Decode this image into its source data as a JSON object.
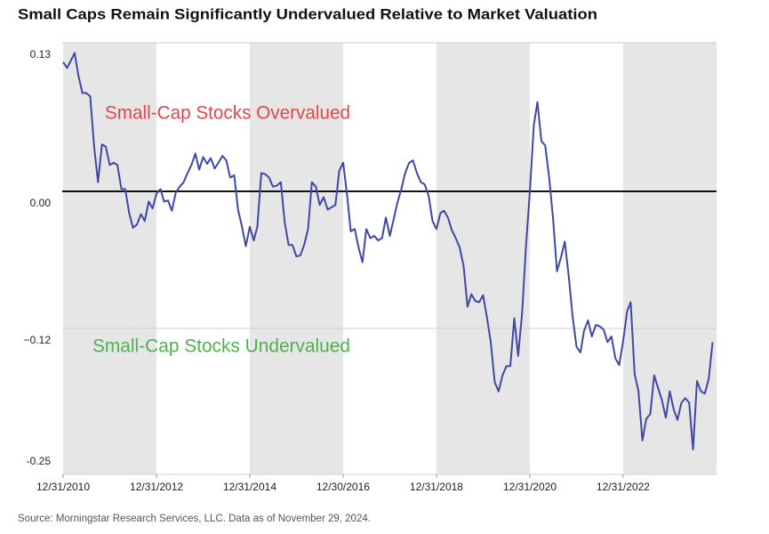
{
  "chart_data": {
    "type": "line",
    "title": "Small Caps Remain Significantly Undervalued Relative to Market Valuation",
    "source": "Source: Morningstar Research Services, LLC. Data as of November 29, 2024.",
    "annotations": [
      {
        "text": "Small-Cap Stocks Overvalued",
        "color": "#e0474c"
      },
      {
        "text": "Small-Cap Stocks Undervalued",
        "color": "#4fb04f"
      }
    ],
    "x": [
      "2010-12",
      "2011-01",
      "2011-02",
      "2011-03",
      "2011-04",
      "2011-05",
      "2011-06",
      "2011-07",
      "2011-08",
      "2011-09",
      "2011-10",
      "2011-11",
      "2011-12",
      "2012-01",
      "2012-02",
      "2012-03",
      "2012-04",
      "2012-05",
      "2012-06",
      "2012-07",
      "2012-08",
      "2012-09",
      "2012-10",
      "2012-11",
      "2012-12",
      "2013-01",
      "2013-02",
      "2013-03",
      "2013-04",
      "2013-05",
      "2013-06",
      "2013-07",
      "2013-08",
      "2013-09",
      "2013-10",
      "2013-11",
      "2013-12",
      "2014-01",
      "2014-02",
      "2014-03",
      "2014-04",
      "2014-05",
      "2014-06",
      "2014-07",
      "2014-08",
      "2014-09",
      "2014-10",
      "2014-11",
      "2014-12",
      "2015-01",
      "2015-02",
      "2015-03",
      "2015-04",
      "2015-05",
      "2015-06",
      "2015-07",
      "2015-08",
      "2015-09",
      "2015-10",
      "2015-11",
      "2015-12",
      "2016-01",
      "2016-02",
      "2016-03",
      "2016-04",
      "2016-05",
      "2016-06",
      "2016-07",
      "2016-08",
      "2016-09",
      "2016-10",
      "2016-11",
      "2016-12",
      "2017-01",
      "2017-02",
      "2017-03",
      "2017-04",
      "2017-05",
      "2017-06",
      "2017-07",
      "2017-08",
      "2017-09",
      "2017-10",
      "2017-11",
      "2017-12",
      "2018-01",
      "2018-02",
      "2018-03",
      "2018-04",
      "2018-05",
      "2018-06",
      "2018-07",
      "2018-08",
      "2018-09",
      "2018-10",
      "2018-11",
      "2018-12",
      "2019-01",
      "2019-02",
      "2019-03",
      "2019-04",
      "2019-05",
      "2019-06",
      "2019-07",
      "2019-08",
      "2019-09",
      "2019-10",
      "2019-11",
      "2019-12",
      "2020-01",
      "2020-02",
      "2020-03",
      "2020-04",
      "2020-05",
      "2020-06",
      "2020-07",
      "2020-08",
      "2020-09",
      "2020-10",
      "2020-11",
      "2020-12",
      "2021-01",
      "2021-02",
      "2021-03",
      "2021-04",
      "2021-05",
      "2021-06",
      "2021-07",
      "2021-08",
      "2021-09",
      "2021-10",
      "2021-11",
      "2021-12",
      "2022-01",
      "2022-02",
      "2022-03",
      "2022-04",
      "2022-05",
      "2022-06",
      "2022-07",
      "2022-08",
      "2022-09",
      "2022-10",
      "2022-11",
      "2022-12",
      "2023-01",
      "2023-02",
      "2023-03",
      "2023-04",
      "2023-05",
      "2023-06",
      "2023-07",
      "2023-08",
      "2023-09",
      "2023-10",
      "2023-11",
      "2023-12",
      "2024-01",
      "2024-02",
      "2024-03",
      "2024-04",
      "2024-05",
      "2024-06",
      "2024-07",
      "2024-08",
      "2024-09",
      "2024-10",
      "2024-11"
    ],
    "series": [
      {
        "color": "#3f48a8",
        "values": [
          0.113,
          0.108,
          0.114,
          0.121,
          0.101,
          0.086,
          0.086,
          0.083,
          0.039,
          0.008,
          0.041,
          0.039,
          0.023,
          0.025,
          0.023,
          0.002,
          0.002,
          -0.019,
          -0.032,
          -0.029,
          -0.02,
          -0.026,
          -0.009,
          -0.015,
          -0.002,
          0.002,
          -0.009,
          -0.008,
          -0.017,
          -0.001,
          0.004,
          0.008,
          0.016,
          0.023,
          0.033,
          0.019,
          0.03,
          0.024,
          0.029,
          0.02,
          0.025,
          0.031,
          0.027,
          0.012,
          0.014,
          -0.016,
          -0.031,
          -0.048,
          -0.031,
          -0.043,
          -0.031,
          0.016,
          0.015,
          0.012,
          0.004,
          0.005,
          0.008,
          -0.027,
          -0.047,
          -0.047,
          -0.057,
          -0.056,
          -0.047,
          -0.033,
          0.008,
          0.004,
          -0.012,
          -0.005,
          -0.016,
          -0.014,
          -0.012,
          0.018,
          0.025,
          -0.004,
          -0.035,
          -0.033,
          -0.049,
          -0.062,
          -0.033,
          -0.041,
          -0.039,
          -0.043,
          -0.041,
          -0.023,
          -0.039,
          -0.024,
          -0.01,
          0.002,
          0.016,
          0.025,
          0.027,
          0.016,
          0.008,
          0.006,
          -0.004,
          -0.026,
          -0.033,
          -0.019,
          -0.017,
          -0.023,
          -0.034,
          -0.041,
          -0.049,
          -0.065,
          -0.101,
          -0.09,
          -0.096,
          -0.097,
          -0.091,
          -0.111,
          -0.132,
          -0.167,
          -0.175,
          -0.161,
          -0.153,
          -0.153,
          -0.111,
          -0.144,
          -0.107,
          -0.049,
          0,
          0.058,
          0.078,
          0.044,
          0.04,
          0.012,
          -0.023,
          -0.07,
          -0.058,
          -0.044,
          -0.074,
          -0.109,
          -0.136,
          -0.141,
          -0.122,
          -0.113,
          -0.127,
          -0.117,
          -0.118,
          -0.121,
          -0.132,
          -0.127,
          -0.146,
          -0.152,
          -0.131,
          -0.105,
          -0.097,
          -0.16,
          -0.175,
          -0.218,
          -0.199,
          -0.195,
          -0.161,
          -0.172,
          -0.183,
          -0.198,
          -0.175,
          -0.191,
          -0.2,
          -0.185,
          -0.181,
          -0.185,
          -0.226,
          -0.166,
          -0.175,
          -0.177,
          -0.164,
          -0.132
        ]
      }
    ],
    "xlim": [
      "2010-12-31",
      "2024-12-31"
    ],
    "xticks": [
      {
        "value": "2010-12-31",
        "label": "12/31/2010"
      },
      {
        "value": "2012-12-31",
        "label": "12/31/2012"
      },
      {
        "value": "2014-12-31",
        "label": "12/31/2014"
      },
      {
        "value": "2016-12-30",
        "label": "12/30/2016"
      },
      {
        "value": "2018-12-31",
        "label": "12/31/2018"
      },
      {
        "value": "2020-12-31",
        "label": "12/31/2020"
      },
      {
        "value": "2022-12-31",
        "label": "12/31/2022"
      }
    ],
    "shaded_ranges": [
      [
        "2010-12-31",
        "2012-12-31"
      ],
      [
        "2014-12-31",
        "2016-12-30"
      ],
      [
        "2018-12-31",
        "2020-12-31"
      ],
      [
        "2022-12-31",
        "2024-12-31"
      ]
    ],
    "shade_color": "#e6e6e6",
    "ylim": [
      -0.25,
      0.13
    ],
    "yticks": [
      -0.25,
      {
        "value": -0.12,
        "label": "−0.12"
      },
      {
        "value": 0,
        "label": "0.00"
      },
      0.13
    ],
    "reference_line": 0,
    "grid": true
  }
}
